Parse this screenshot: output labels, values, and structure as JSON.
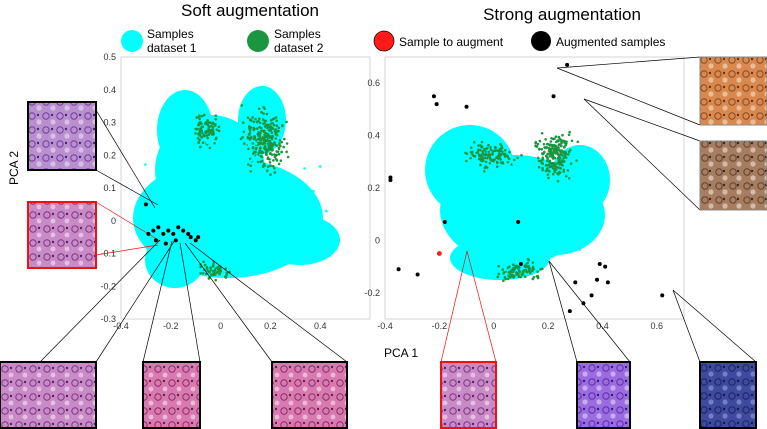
{
  "figure": {
    "legend": [
      {
        "label": "Samples\ndataset 1",
        "color": "#00ffff"
      },
      {
        "label": "Samples\ndataset 2",
        "color": "#1a9641"
      },
      {
        "label": "Sample to augment",
        "color": "#ff1a1a"
      },
      {
        "label": "Augmented samples",
        "color": "#000000"
      }
    ],
    "ylabel_shared": "PCA 2",
    "xlabel_shared": "PCA 1"
  },
  "chart_data": [
    {
      "type": "scatter",
      "title": "Soft augmentation",
      "xlabel": "PCA 1",
      "ylabel": "PCA 2",
      "xlim": [
        -0.4,
        0.6
      ],
      "ylim": [
        -0.3,
        0.5
      ],
      "xticks": [
        -0.4,
        -0.2,
        0.0,
        0.2,
        0.4
      ],
      "yticks": [
        -0.3,
        -0.2,
        -0.1,
        0.0,
        0.1,
        0.2,
        0.3,
        0.4,
        0.5
      ],
      "series": [
        {
          "name": "Samples dataset 1",
          "color": "#00ffff"
        },
        {
          "name": "Samples dataset 2",
          "color": "#1a9641"
        },
        {
          "name": "Augmented samples",
          "color": "#000000",
          "points": [
            [
              -0.3,
              0.05
            ],
            [
              -0.29,
              -0.04
            ],
            [
              -0.27,
              -0.03
            ],
            [
              -0.25,
              -0.02
            ],
            [
              -0.23,
              -0.04
            ],
            [
              -0.21,
              -0.03
            ],
            [
              -0.19,
              -0.04
            ],
            [
              -0.17,
              -0.02
            ],
            [
              -0.15,
              -0.03
            ],
            [
              -0.13,
              -0.04
            ],
            [
              -0.12,
              -0.05
            ],
            [
              -0.1,
              -0.06
            ],
            [
              -0.09,
              -0.05
            ],
            [
              -0.26,
              -0.06
            ],
            [
              -0.22,
              -0.07
            ],
            [
              -0.18,
              -0.06
            ]
          ]
        }
      ]
    },
    {
      "type": "scatter",
      "title": "Strong augmentation",
      "xlabel": "PCA 1",
      "ylabel": "PCA 2",
      "xlim": [
        -0.4,
        0.7
      ],
      "ylim": [
        -0.3,
        0.7
      ],
      "xticks": [
        -0.4,
        -0.2,
        0.0,
        0.2,
        0.4,
        0.6
      ],
      "yticks": [
        -0.2,
        0.0,
        0.2,
        0.4,
        0.6
      ],
      "series": [
        {
          "name": "Samples dataset 1",
          "color": "#00ffff"
        },
        {
          "name": "Samples dataset 2",
          "color": "#1a9641"
        },
        {
          "name": "Sample to augment",
          "color": "#ff1a1a",
          "points": [
            [
              -0.2,
              -0.05
            ]
          ]
        },
        {
          "name": "Augmented samples",
          "color": "#000000",
          "points": [
            [
              0.27,
              0.67
            ],
            [
              0.22,
              0.55
            ],
            [
              -0.22,
              0.55
            ],
            [
              -0.21,
              0.52
            ],
            [
              -0.1,
              0.51
            ],
            [
              -0.38,
              0.24
            ],
            [
              -0.38,
              0.23
            ],
            [
              -0.18,
              0.07
            ],
            [
              0.09,
              0.07
            ],
            [
              -0.35,
              -0.11
            ],
            [
              -0.28,
              -0.13
            ],
            [
              0.1,
              -0.09
            ],
            [
              0.39,
              -0.09
            ],
            [
              0.41,
              -0.1
            ],
            [
              0.38,
              -0.15
            ],
            [
              0.3,
              -0.16
            ],
            [
              0.42,
              -0.16
            ],
            [
              0.36,
              -0.21
            ],
            [
              0.33,
              -0.24
            ],
            [
              0.28,
              -0.27
            ],
            [
              0.62,
              -0.21
            ]
          ]
        }
      ]
    }
  ]
}
